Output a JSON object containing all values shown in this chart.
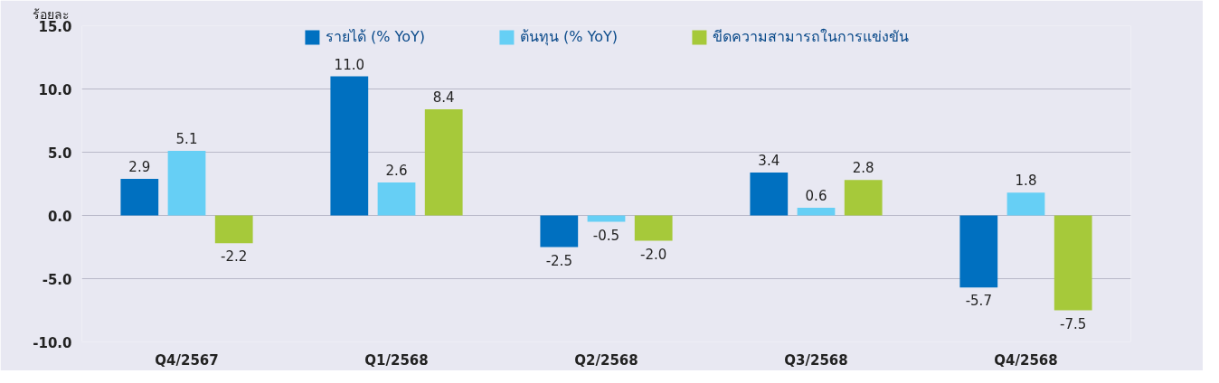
{
  "chart_data": {
    "type": "bar",
    "ylabel": "ร้อยละ",
    "categories": [
      "Q4/2567",
      "Q1/2568",
      "Q2/2568",
      "Q3/2568",
      "Q4/2568"
    ],
    "series": [
      {
        "name": "รายได้ (% YoY)",
        "color": "#0070c0",
        "values": [
          2.9,
          11.0,
          -2.5,
          3.4,
          -5.7
        ],
        "value_labels": [
          "2.9",
          "11.0",
          "-2.5",
          "3.4",
          "-5.7"
        ]
      },
      {
        "name": "ต้นทุน (% YoY)",
        "color": "#66cff5",
        "values": [
          5.1,
          2.6,
          -0.5,
          0.6,
          1.8
        ],
        "value_labels": [
          "5.1",
          "2.6",
          "-0.5",
          "0.6",
          "1.8"
        ]
      },
      {
        "name": "ขีดความสามารถในการแข่งขัน",
        "color": "#a6c93a",
        "values": [
          -2.2,
          8.4,
          -2.0,
          2.8,
          -7.5
        ],
        "value_labels": [
          "-2.2",
          "8.4",
          "-2.0",
          "2.8",
          "-7.5"
        ]
      }
    ],
    "ylim": [
      -10,
      15
    ],
    "yticks": [
      {
        "value": -10,
        "label": "-10.0"
      },
      {
        "value": -5,
        "label": "-5.0"
      },
      {
        "value": 0,
        "label": "0.0"
      },
      {
        "value": 5,
        "label": "5.0"
      },
      {
        "value": 10,
        "label": "10.0"
      },
      {
        "value": 15,
        "label": "15.0"
      }
    ],
    "grid": "y",
    "legend": "top"
  }
}
